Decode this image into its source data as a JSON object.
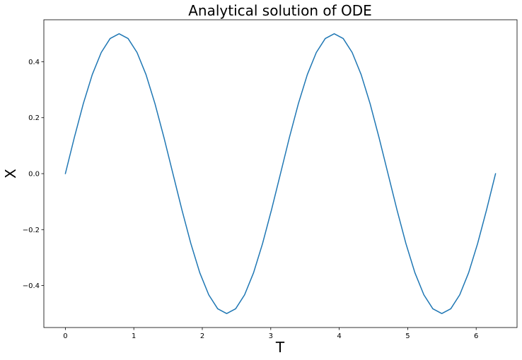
{
  "chart_data": {
    "type": "line",
    "title": "Analytical solution of ODE",
    "xlabel": "T",
    "ylabel": "X",
    "xlim": [
      -0.314,
      6.597
    ],
    "ylim": [
      -0.55,
      0.55
    ],
    "x_ticks": [
      0,
      1,
      2,
      3,
      4,
      5,
      6
    ],
    "x_tick_labels": [
      "0",
      "1",
      "2",
      "3",
      "4",
      "5",
      "6"
    ],
    "y_ticks": [
      -0.4,
      -0.2,
      0.0,
      0.2,
      0.4
    ],
    "y_tick_labels": [
      "−0.4",
      "−0.2",
      "0.0",
      "0.2",
      "0.4"
    ],
    "grid": false,
    "series": [
      {
        "color": "#1f77b4",
        "x": [
          0.0,
          0.131,
          0.262,
          0.393,
          0.524,
          0.654,
          0.785,
          0.916,
          1.047,
          1.178,
          1.309,
          1.44,
          1.571,
          1.702,
          1.833,
          1.963,
          2.094,
          2.225,
          2.356,
          2.487,
          2.618,
          2.749,
          2.88,
          3.011,
          3.142,
          3.272,
          3.403,
          3.534,
          3.665,
          3.796,
          3.927,
          4.058,
          4.189,
          4.32,
          4.451,
          4.581,
          4.712,
          4.843,
          4.974,
          5.105,
          5.236,
          5.367,
          5.498,
          5.629,
          5.76,
          5.89,
          6.021,
          6.152,
          6.283
        ],
        "y": [
          0.0,
          0.129,
          0.25,
          0.354,
          0.433,
          0.483,
          0.5,
          0.483,
          0.433,
          0.354,
          0.25,
          0.129,
          0.0,
          -0.129,
          -0.25,
          -0.354,
          -0.433,
          -0.483,
          -0.5,
          -0.483,
          -0.433,
          -0.354,
          -0.25,
          -0.129,
          0.0,
          0.129,
          0.25,
          0.354,
          0.433,
          0.483,
          0.5,
          0.483,
          0.433,
          0.354,
          0.25,
          0.129,
          0.0,
          -0.129,
          -0.25,
          -0.354,
          -0.433,
          -0.483,
          -0.5,
          -0.483,
          -0.433,
          -0.354,
          -0.25,
          -0.129,
          0.0
        ]
      }
    ]
  }
}
